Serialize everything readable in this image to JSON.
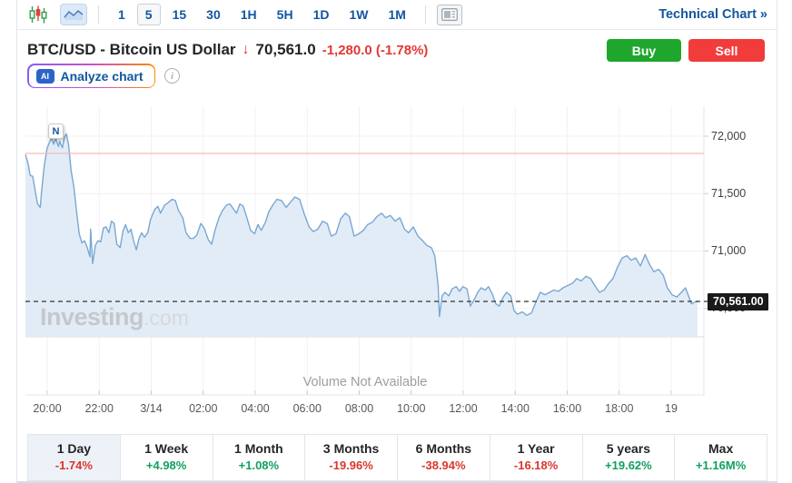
{
  "toolbar": {
    "chart_type_candlestick_icon": "candlestick-chart-icon",
    "chart_type_area_icon": "area-chart-icon",
    "intervals": [
      "1",
      "5",
      "15",
      "30",
      "1H",
      "5H",
      "1D",
      "1W",
      "1M"
    ],
    "selected_interval": "5",
    "news_panel_icon": "news-panel-icon",
    "technical_chart_label": "Technical Chart »"
  },
  "header": {
    "title": "BTC/USD - Bitcoin US Dollar",
    "direction": "down",
    "direction_icon": "down-arrow-icon",
    "last_price": "70,561.0",
    "change": "-1,280.0 (-1.78%)",
    "buy_label": "Buy",
    "sell_label": "Sell"
  },
  "analyze": {
    "ai_badge": "AI",
    "label": "Analyze chart",
    "info_icon": "info-icon"
  },
  "chart": {
    "watermark_bold": "Investing",
    "watermark_light": ".com",
    "volume_message": "Volume Not Available",
    "news_marker_label": "N",
    "current_price_tag": "70,561.00"
  },
  "chart_data": {
    "type": "area",
    "title": "",
    "xlabel": "",
    "ylabel": "",
    "x_ticks": [
      "20:00",
      "22:00",
      "3/14",
      "02:00",
      "04:00",
      "06:00",
      "08:00",
      "10:00",
      "12:00",
      "14:00",
      "16:00",
      "18:00",
      "19"
    ],
    "y_ticks": [
      {
        "label": "72,000",
        "value": 72000
      },
      {
        "label": "71,500",
        "value": 71500
      },
      {
        "label": "71,000",
        "value": 71000
      },
      {
        "label": "70,500",
        "value": 70500
      }
    ],
    "ylim": [
      70250,
      72260
    ],
    "grid": true,
    "legend": false,
    "current_price": 70561.0,
    "reference_line_price_estimate": 71850,
    "series_name": "BTC/USD",
    "points": [
      [
        0.0,
        71840
      ],
      [
        0.004,
        71760
      ],
      [
        0.007,
        71660
      ],
      [
        0.011,
        71650
      ],
      [
        0.014,
        71540
      ],
      [
        0.018,
        71410
      ],
      [
        0.022,
        71380
      ],
      [
        0.024,
        71520
      ],
      [
        0.028,
        71740
      ],
      [
        0.032,
        71890
      ],
      [
        0.036,
        71950
      ],
      [
        0.039,
        71985
      ],
      [
        0.042,
        71930
      ],
      [
        0.045,
        71980
      ],
      [
        0.049,
        71910
      ],
      [
        0.051,
        71955
      ],
      [
        0.055,
        71900
      ],
      [
        0.058,
        71990
      ],
      [
        0.061,
        72020
      ],
      [
        0.064,
        71930
      ],
      [
        0.068,
        71700
      ],
      [
        0.072,
        71560
      ],
      [
        0.076,
        71350
      ],
      [
        0.08,
        71150
      ],
      [
        0.084,
        71070
      ],
      [
        0.088,
        71090
      ],
      [
        0.092,
        71030
      ],
      [
        0.096,
        70950
      ],
      [
        0.097,
        71190
      ],
      [
        0.1,
        70890
      ],
      [
        0.104,
        71050
      ],
      [
        0.108,
        71090
      ],
      [
        0.112,
        71080
      ],
      [
        0.116,
        71200
      ],
      [
        0.12,
        71210
      ],
      [
        0.124,
        71160
      ],
      [
        0.128,
        71260
      ],
      [
        0.132,
        71240
      ],
      [
        0.136,
        71060
      ],
      [
        0.141,
        71030
      ],
      [
        0.145,
        71170
      ],
      [
        0.149,
        71230
      ],
      [
        0.153,
        71160
      ],
      [
        0.157,
        71190
      ],
      [
        0.161,
        71090
      ],
      [
        0.165,
        71010
      ],
      [
        0.169,
        71110
      ],
      [
        0.173,
        71160
      ],
      [
        0.177,
        71120
      ],
      [
        0.182,
        71160
      ],
      [
        0.186,
        71270
      ],
      [
        0.192,
        71360
      ],
      [
        0.197,
        71390
      ],
      [
        0.201,
        71330
      ],
      [
        0.207,
        71400
      ],
      [
        0.212,
        71420
      ],
      [
        0.218,
        71450
      ],
      [
        0.223,
        71440
      ],
      [
        0.228,
        71350
      ],
      [
        0.234,
        71290
      ],
      [
        0.239,
        71160
      ],
      [
        0.245,
        71110
      ],
      [
        0.25,
        71110
      ],
      [
        0.255,
        71140
      ],
      [
        0.261,
        71240
      ],
      [
        0.266,
        71200
      ],
      [
        0.272,
        71100
      ],
      [
        0.277,
        71060
      ],
      [
        0.282,
        71180
      ],
      [
        0.288,
        71290
      ],
      [
        0.293,
        71350
      ],
      [
        0.299,
        71400
      ],
      [
        0.304,
        71410
      ],
      [
        0.309,
        71370
      ],
      [
        0.314,
        71330
      ],
      [
        0.319,
        71410
      ],
      [
        0.324,
        71390
      ],
      [
        0.33,
        71280
      ],
      [
        0.335,
        71180
      ],
      [
        0.341,
        71150
      ],
      [
        0.346,
        71230
      ],
      [
        0.351,
        71180
      ],
      [
        0.357,
        71250
      ],
      [
        0.362,
        71340
      ],
      [
        0.368,
        71400
      ],
      [
        0.374,
        71450
      ],
      [
        0.381,
        71440
      ],
      [
        0.388,
        71380
      ],
      [
        0.395,
        71430
      ],
      [
        0.401,
        71470
      ],
      [
        0.408,
        71450
      ],
      [
        0.415,
        71320
      ],
      [
        0.422,
        71210
      ],
      [
        0.428,
        71170
      ],
      [
        0.435,
        71190
      ],
      [
        0.442,
        71260
      ],
      [
        0.449,
        71240
      ],
      [
        0.455,
        71130
      ],
      [
        0.462,
        71150
      ],
      [
        0.469,
        71280
      ],
      [
        0.476,
        71330
      ],
      [
        0.482,
        71300
      ],
      [
        0.489,
        71130
      ],
      [
        0.496,
        71150
      ],
      [
        0.503,
        71180
      ],
      [
        0.509,
        71230
      ],
      [
        0.516,
        71250
      ],
      [
        0.523,
        71300
      ],
      [
        0.53,
        71330
      ],
      [
        0.536,
        71290
      ],
      [
        0.543,
        71310
      ],
      [
        0.55,
        71260
      ],
      [
        0.557,
        71290
      ],
      [
        0.564,
        71190
      ],
      [
        0.57,
        71160
      ],
      [
        0.577,
        71210
      ],
      [
        0.584,
        71130
      ],
      [
        0.591,
        71090
      ],
      [
        0.597,
        71050
      ],
      [
        0.604,
        71030
      ],
      [
        0.609,
        70960
      ],
      [
        0.614,
        70700
      ],
      [
        0.616,
        70430
      ],
      [
        0.62,
        70610
      ],
      [
        0.624,
        70640
      ],
      [
        0.63,
        70610
      ],
      [
        0.635,
        70670
      ],
      [
        0.641,
        70690
      ],
      [
        0.646,
        70650
      ],
      [
        0.651,
        70690
      ],
      [
        0.657,
        70670
      ],
      [
        0.662,
        70520
      ],
      [
        0.668,
        70580
      ],
      [
        0.673,
        70640
      ],
      [
        0.678,
        70680
      ],
      [
        0.684,
        70660
      ],
      [
        0.689,
        70690
      ],
      [
        0.695,
        70620
      ],
      [
        0.7,
        70540
      ],
      [
        0.705,
        70520
      ],
      [
        0.711,
        70600
      ],
      [
        0.716,
        70640
      ],
      [
        0.722,
        70610
      ],
      [
        0.727,
        70480
      ],
      [
        0.732,
        70450
      ],
      [
        0.739,
        70470
      ],
      [
        0.746,
        70440
      ],
      [
        0.753,
        70460
      ],
      [
        0.759,
        70550
      ],
      [
        0.766,
        70640
      ],
      [
        0.773,
        70620
      ],
      [
        0.78,
        70640
      ],
      [
        0.786,
        70660
      ],
      [
        0.793,
        70650
      ],
      [
        0.8,
        70680
      ],
      [
        0.807,
        70700
      ],
      [
        0.814,
        70720
      ],
      [
        0.82,
        70760
      ],
      [
        0.827,
        70740
      ],
      [
        0.834,
        70780
      ],
      [
        0.841,
        70760
      ],
      [
        0.847,
        70700
      ],
      [
        0.854,
        70640
      ],
      [
        0.861,
        70660
      ],
      [
        0.868,
        70720
      ],
      [
        0.874,
        70760
      ],
      [
        0.881,
        70860
      ],
      [
        0.888,
        70940
      ],
      [
        0.895,
        70960
      ],
      [
        0.901,
        70920
      ],
      [
        0.908,
        70940
      ],
      [
        0.915,
        70870
      ],
      [
        0.922,
        70970
      ],
      [
        0.928,
        70890
      ],
      [
        0.935,
        70820
      ],
      [
        0.942,
        70840
      ],
      [
        0.949,
        70790
      ],
      [
        0.955,
        70680
      ],
      [
        0.962,
        70620
      ],
      [
        0.969,
        70600
      ],
      [
        0.976,
        70640
      ],
      [
        0.982,
        70680
      ],
      [
        0.986,
        70620
      ],
      [
        0.991,
        70540
      ],
      [
        0.997,
        70560
      ],
      [
        1.0,
        70561
      ]
    ]
  },
  "timeframes": {
    "items": [
      {
        "label": "1 Day",
        "change": "-1.74%",
        "direction": "down",
        "selected": true
      },
      {
        "label": "1 Week",
        "change": "+4.98%",
        "direction": "up",
        "selected": false
      },
      {
        "label": "1 Month",
        "change": "+1.08%",
        "direction": "up",
        "selected": false
      },
      {
        "label": "3 Months",
        "change": "-19.96%",
        "direction": "down",
        "selected": false
      },
      {
        "label": "6 Months",
        "change": "-38.94%",
        "direction": "down",
        "selected": false
      },
      {
        "label": "1 Year",
        "change": "-16.18%",
        "direction": "down",
        "selected": false
      },
      {
        "label": "5 years",
        "change": "+19.62%",
        "direction": "up",
        "selected": false
      },
      {
        "label": "Max",
        "change": "+1.16M%",
        "direction": "up",
        "selected": false
      }
    ]
  },
  "colors": {
    "accent_blue": "#1256a0",
    "buy_green": "#1ea72c",
    "sell_red": "#f23b3b",
    "negative_red": "#d9362e",
    "positive_green": "#11a05f",
    "line_blue": "#7aa7d3",
    "area_fill": "#e2ecf7",
    "reference_line": "#f5bcb6",
    "current_price_line": "#333333",
    "grid": "#f0f1f3"
  }
}
